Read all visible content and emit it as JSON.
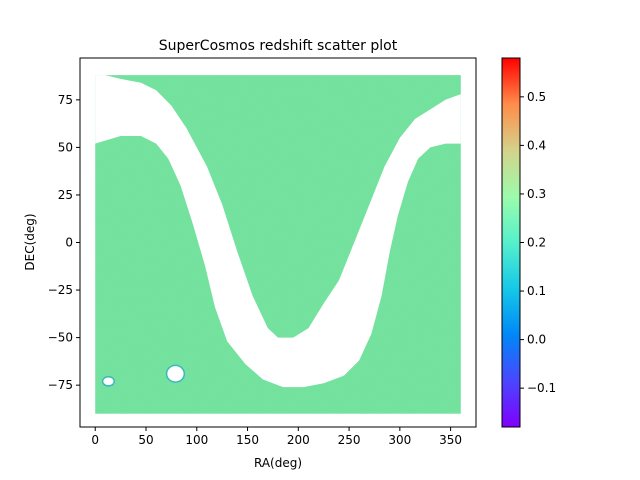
{
  "chart_data": {
    "type": "scatter",
    "title": "SuperCosmos redshift scatter plot",
    "xlabel": "RA(deg)",
    "ylabel": "DEC(deg)",
    "xlim": [
      -15,
      375
    ],
    "ylim": [
      -97,
      97
    ],
    "xticks": [
      0,
      50,
      100,
      150,
      200,
      250,
      300,
      350
    ],
    "yticks": [
      -75,
      -50,
      -25,
      0,
      25,
      50,
      75
    ],
    "grid": false,
    "colormap": "rainbow",
    "colorbar": {
      "range": [
        -0.18,
        0.58
      ],
      "ticks": [
        -0.1,
        0.0,
        0.1,
        0.2,
        0.3,
        0.4,
        0.5
      ],
      "tick_labels": [
        "−0.1",
        "0.0",
        "0.1",
        "0.2",
        "0.3",
        "0.4",
        "0.5"
      ]
    },
    "coverage": {
      "ra_range": [
        0,
        360
      ],
      "dec_range": [
        -90,
        88
      ],
      "dominant_redshift": 0.2,
      "galactic_plane_mask": [
        [
          0,
          88
        ],
        [
          10,
          88
        ],
        [
          25,
          86
        ],
        [
          45,
          84
        ],
        [
          60,
          80
        ],
        [
          75,
          72
        ],
        [
          90,
          60
        ],
        [
          110,
          40
        ],
        [
          125,
          20
        ],
        [
          140,
          -5
        ],
        [
          155,
          -28
        ],
        [
          170,
          -45
        ],
        [
          180,
          -50
        ],
        [
          195,
          -50
        ],
        [
          210,
          -45
        ],
        [
          225,
          -32
        ],
        [
          240,
          -20
        ],
        [
          255,
          0
        ],
        [
          270,
          20
        ],
        [
          285,
          40
        ],
        [
          300,
          55
        ],
        [
          315,
          65
        ],
        [
          330,
          70
        ],
        [
          345,
          75
        ],
        [
          360,
          78
        ],
        [
          360,
          52
        ],
        [
          345,
          52
        ],
        [
          330,
          50
        ],
        [
          318,
          44
        ],
        [
          308,
          32
        ],
        [
          298,
          14
        ],
        [
          290,
          -5
        ],
        [
          282,
          -28
        ],
        [
          272,
          -48
        ],
        [
          260,
          -62
        ],
        [
          245,
          -70
        ],
        [
          225,
          -74
        ],
        [
          205,
          -76
        ],
        [
          185,
          -76
        ],
        [
          165,
          -72
        ],
        [
          148,
          -64
        ],
        [
          130,
          -52
        ],
        [
          118,
          -34
        ],
        [
          108,
          -12
        ],
        [
          96,
          10
        ],
        [
          84,
          30
        ],
        [
          72,
          44
        ],
        [
          60,
          52
        ],
        [
          45,
          56
        ],
        [
          25,
          56
        ],
        [
          0,
          52
        ]
      ],
      "holes": [
        {
          "ra": 79,
          "dec": -69,
          "d_ra": 8,
          "d_dec": 4
        },
        {
          "ra": 13,
          "dec": -73,
          "d_ra": 5,
          "d_dec": 2
        }
      ]
    }
  }
}
